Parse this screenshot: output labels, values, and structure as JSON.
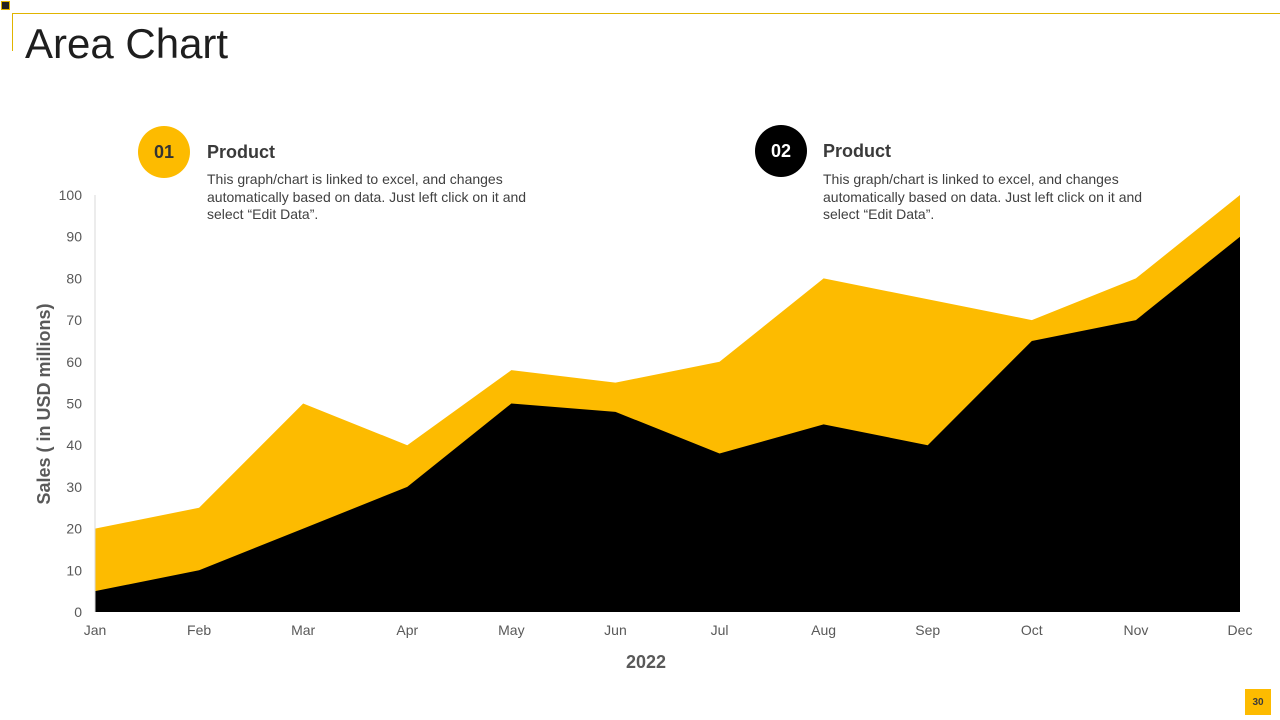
{
  "page_title": "Area Chart",
  "legend": [
    {
      "number": "01",
      "heading": "Product",
      "body": "This graph/chart is linked to excel, and changes automatically based on data. Just left click on it and select “Edit Data”."
    },
    {
      "number": "02",
      "heading": "Product",
      "body": "This graph/chart is linked to excel, and changes automatically based on data. Just left click on it and select “Edit Data”."
    }
  ],
  "page_number": "30",
  "colors": {
    "accent": "#fdbb00",
    "dark": "#000000",
    "text": "#404040",
    "axis_text": "#595959"
  },
  "chart_data": {
    "type": "area",
    "title": "",
    "xlabel": "2022",
    "ylabel": "Sales  ( in USD millions)",
    "categories": [
      "Jan",
      "Feb",
      "Mar",
      "Apr",
      "May",
      "Jun",
      "Jul",
      "Aug",
      "Sep",
      "Oct",
      "Nov",
      "Dec"
    ],
    "yticks": [
      0,
      10,
      20,
      30,
      40,
      50,
      60,
      70,
      80,
      90,
      100
    ],
    "ylim": [
      0,
      100
    ],
    "grid": false,
    "series": [
      {
        "name": "Product 01",
        "color": "#fdbb00",
        "values": [
          20,
          25,
          50,
          40,
          58,
          55,
          60,
          80,
          75,
          70,
          80,
          100
        ]
      },
      {
        "name": "Product 02",
        "color": "#000000",
        "values": [
          5,
          10,
          20,
          30,
          50,
          48,
          38,
          45,
          40,
          65,
          70,
          90
        ]
      }
    ]
  }
}
